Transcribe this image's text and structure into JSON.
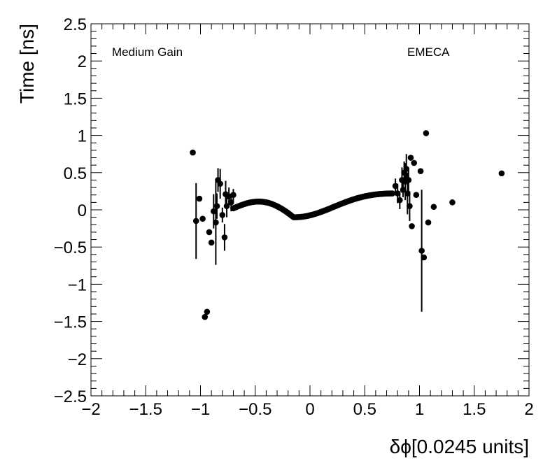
{
  "chart_data": {
    "type": "scatter",
    "ylabel": "Time [ns]",
    "xlabel": "δϕ[0.0245 units]",
    "annotations": {
      "left": "Medium Gain",
      "right": "EMECA"
    },
    "xlim": [
      -2,
      2
    ],
    "ylim": [
      -2.5,
      2.5
    ],
    "grid": false,
    "x_ticks": [
      -2,
      -1.5,
      -1,
      -0.5,
      0,
      0.5,
      1,
      1.5,
      2
    ],
    "x_tick_labels": [
      "−2",
      "−1.5",
      "−1",
      "−0.5",
      "0",
      "0.5",
      "1",
      "1.5",
      "2"
    ],
    "y_ticks": [
      2.5,
      2,
      1.5,
      1,
      0.5,
      0,
      -0.5,
      -1,
      -1.5,
      -2,
      -2.5
    ],
    "y_tick_labels": [
      "2.5",
      "2",
      "1.5",
      "1",
      "0.5",
      "0",
      "−0.5",
      "−1",
      "−1.5",
      "−2",
      "−2.5"
    ],
    "outlier_points": [
      {
        "x": -1.07,
        "y": 0.77,
        "err": 0
      },
      {
        "x": -1.04,
        "y": -0.15,
        "err": 0.51
      },
      {
        "x": -1.01,
        "y": 0.15,
        "err": 0
      },
      {
        "x": -0.98,
        "y": -0.12,
        "err": 0
      },
      {
        "x": -0.96,
        "y": -1.44,
        "err": 0
      },
      {
        "x": -0.94,
        "y": -1.37,
        "err": 0
      },
      {
        "x": -0.92,
        "y": -0.3,
        "err": 0
      },
      {
        "x": -0.9,
        "y": -0.44,
        "err": 0
      },
      {
        "x": -0.88,
        "y": -0.02,
        "err": 0.23
      },
      {
        "x": -0.86,
        "y": -0.17,
        "err": 0.57
      },
      {
        "x": -0.85,
        "y": 0.05,
        "err": 0.17
      },
      {
        "x": -0.84,
        "y": 0.4,
        "err": 0.16
      },
      {
        "x": -0.82,
        "y": 0.35,
        "err": 0.2
      },
      {
        "x": -0.8,
        "y": -0.07,
        "err": 0.1
      },
      {
        "x": -0.78,
        "y": -0.37,
        "err": 0.18
      },
      {
        "x": -0.77,
        "y": 0.21,
        "err": 0.18
      },
      {
        "x": -0.76,
        "y": 0.05,
        "err": 0.15
      },
      {
        "x": -0.74,
        "y": 0.18,
        "err": 0.12
      },
      {
        "x": -0.72,
        "y": 0.1,
        "err": 0.12
      },
      {
        "x": -0.7,
        "y": 0.2,
        "err": 0.08
      },
      {
        "x": 0.78,
        "y": 0.32,
        "err": 0.1
      },
      {
        "x": 0.8,
        "y": 0.22,
        "err": 0.13
      },
      {
        "x": 0.82,
        "y": 0.13,
        "err": 0.12
      },
      {
        "x": 0.84,
        "y": 0.4,
        "err": 0.17
      },
      {
        "x": 0.85,
        "y": 0.27,
        "err": 0.1
      },
      {
        "x": 0.86,
        "y": 0.5,
        "err": 0.15
      },
      {
        "x": 0.87,
        "y": 0.38,
        "err": 0.25
      },
      {
        "x": 0.88,
        "y": 0.55,
        "err": 0.2
      },
      {
        "x": 0.89,
        "y": 0.22,
        "err": 0.28
      },
      {
        "x": 0.9,
        "y": 0.4,
        "err": 0.15
      },
      {
        "x": 0.91,
        "y": 0.05,
        "err": 0.2
      },
      {
        "x": 0.92,
        "y": 0.7,
        "err": 0
      },
      {
        "x": 0.93,
        "y": -0.22,
        "err": 0
      },
      {
        "x": 0.95,
        "y": 0.63,
        "err": 0
      },
      {
        "x": 0.97,
        "y": 0.2,
        "err": 0
      },
      {
        "x": 1.01,
        "y": 0.52,
        "err": 0
      },
      {
        "x": 1.02,
        "y": -0.55,
        "err": 0.82
      },
      {
        "x": 1.04,
        "y": -0.64,
        "err": 0
      },
      {
        "x": 1.06,
        "y": 1.03,
        "err": 0
      },
      {
        "x": 1.08,
        "y": -0.17,
        "err": 0
      },
      {
        "x": 1.13,
        "y": 0.04,
        "err": 0
      },
      {
        "x": 1.3,
        "y": 0.1,
        "err": 0
      },
      {
        "x": 1.75,
        "y": 0.49,
        "err": 0
      }
    ]
  }
}
